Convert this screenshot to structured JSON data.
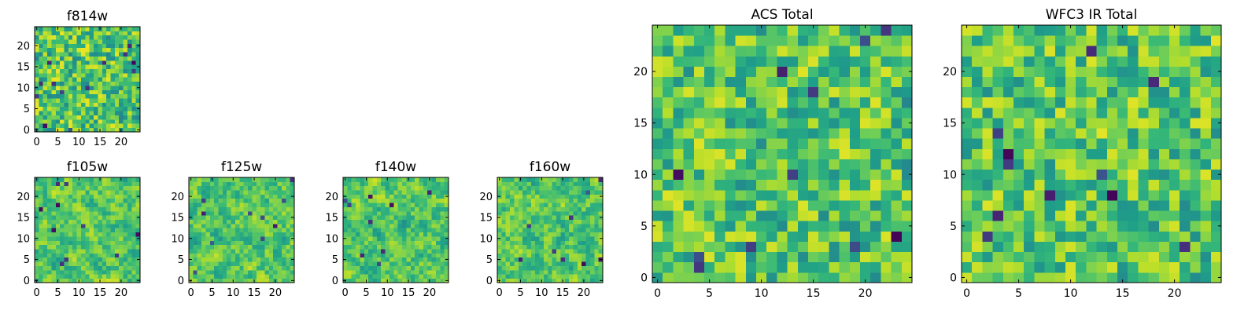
{
  "chart_data": [
    {
      "type": "heatmap",
      "title": "f814w",
      "xticks": [
        0,
        5,
        10,
        15,
        20
      ],
      "yticks": [
        0,
        5,
        10,
        15,
        20
      ],
      "xlim": [
        0,
        24
      ],
      "ylim": [
        0,
        24
      ],
      "grid_size": [
        25,
        25
      ],
      "colormap": "viridis",
      "seed": 814,
      "smooth": 0.15,
      "dark_spots": 14
    },
    {
      "type": "heatmap",
      "title": "f105w",
      "xticks": [
        0,
        5,
        10,
        15,
        20
      ],
      "yticks": [
        0,
        5,
        10,
        15,
        20
      ],
      "xlim": [
        0,
        24
      ],
      "ylim": [
        0,
        24
      ],
      "grid_size": [
        25,
        25
      ],
      "colormap": "viridis",
      "seed": 105,
      "smooth": 0.55,
      "dark_spots": 10
    },
    {
      "type": "heatmap",
      "title": "f125w",
      "xticks": [
        0,
        5,
        10,
        15,
        20
      ],
      "yticks": [
        0,
        5,
        10,
        15,
        20
      ],
      "xlim": [
        0,
        24
      ],
      "ylim": [
        0,
        24
      ],
      "grid_size": [
        25,
        25
      ],
      "colormap": "viridis",
      "seed": 125,
      "smooth": 0.55,
      "dark_spots": 10
    },
    {
      "type": "heatmap",
      "title": "f140w",
      "xticks": [
        0,
        5,
        10,
        15,
        20
      ],
      "yticks": [
        0,
        5,
        10,
        15,
        20
      ],
      "xlim": [
        0,
        24
      ],
      "ylim": [
        0,
        24
      ],
      "grid_size": [
        25,
        25
      ],
      "colormap": "viridis",
      "seed": 140,
      "smooth": 0.55,
      "dark_spots": 9
    },
    {
      "type": "heatmap",
      "title": "f160w",
      "xticks": [
        0,
        5,
        10,
        15,
        20
      ],
      "yticks": [
        0,
        5,
        10,
        15,
        20
      ],
      "xlim": [
        0,
        24
      ],
      "ylim": [
        0,
        24
      ],
      "grid_size": [
        25,
        25
      ],
      "colormap": "viridis",
      "seed": 160,
      "smooth": 0.55,
      "dark_spots": 9
    },
    {
      "type": "heatmap",
      "title": "ACS Total",
      "xticks": [
        0,
        5,
        10,
        15,
        20
      ],
      "yticks": [
        0,
        5,
        10,
        15,
        20
      ],
      "xlim": [
        0,
        24
      ],
      "ylim": [
        0,
        24
      ],
      "grid_size": [
        25,
        25
      ],
      "colormap": "viridis",
      "seed": 901,
      "smooth": 0.2,
      "dark_spots": 12
    },
    {
      "type": "heatmap",
      "title": "WFC3 IR Total",
      "xticks": [
        0,
        5,
        10,
        15,
        20
      ],
      "yticks": [
        0,
        5,
        10,
        15,
        20
      ],
      "xlim": [
        0,
        24
      ],
      "ylim": [
        0,
        24
      ],
      "grid_size": [
        25,
        25
      ],
      "colormap": "viridis",
      "seed": 902,
      "smooth": 0.2,
      "dark_spots": 12
    }
  ]
}
